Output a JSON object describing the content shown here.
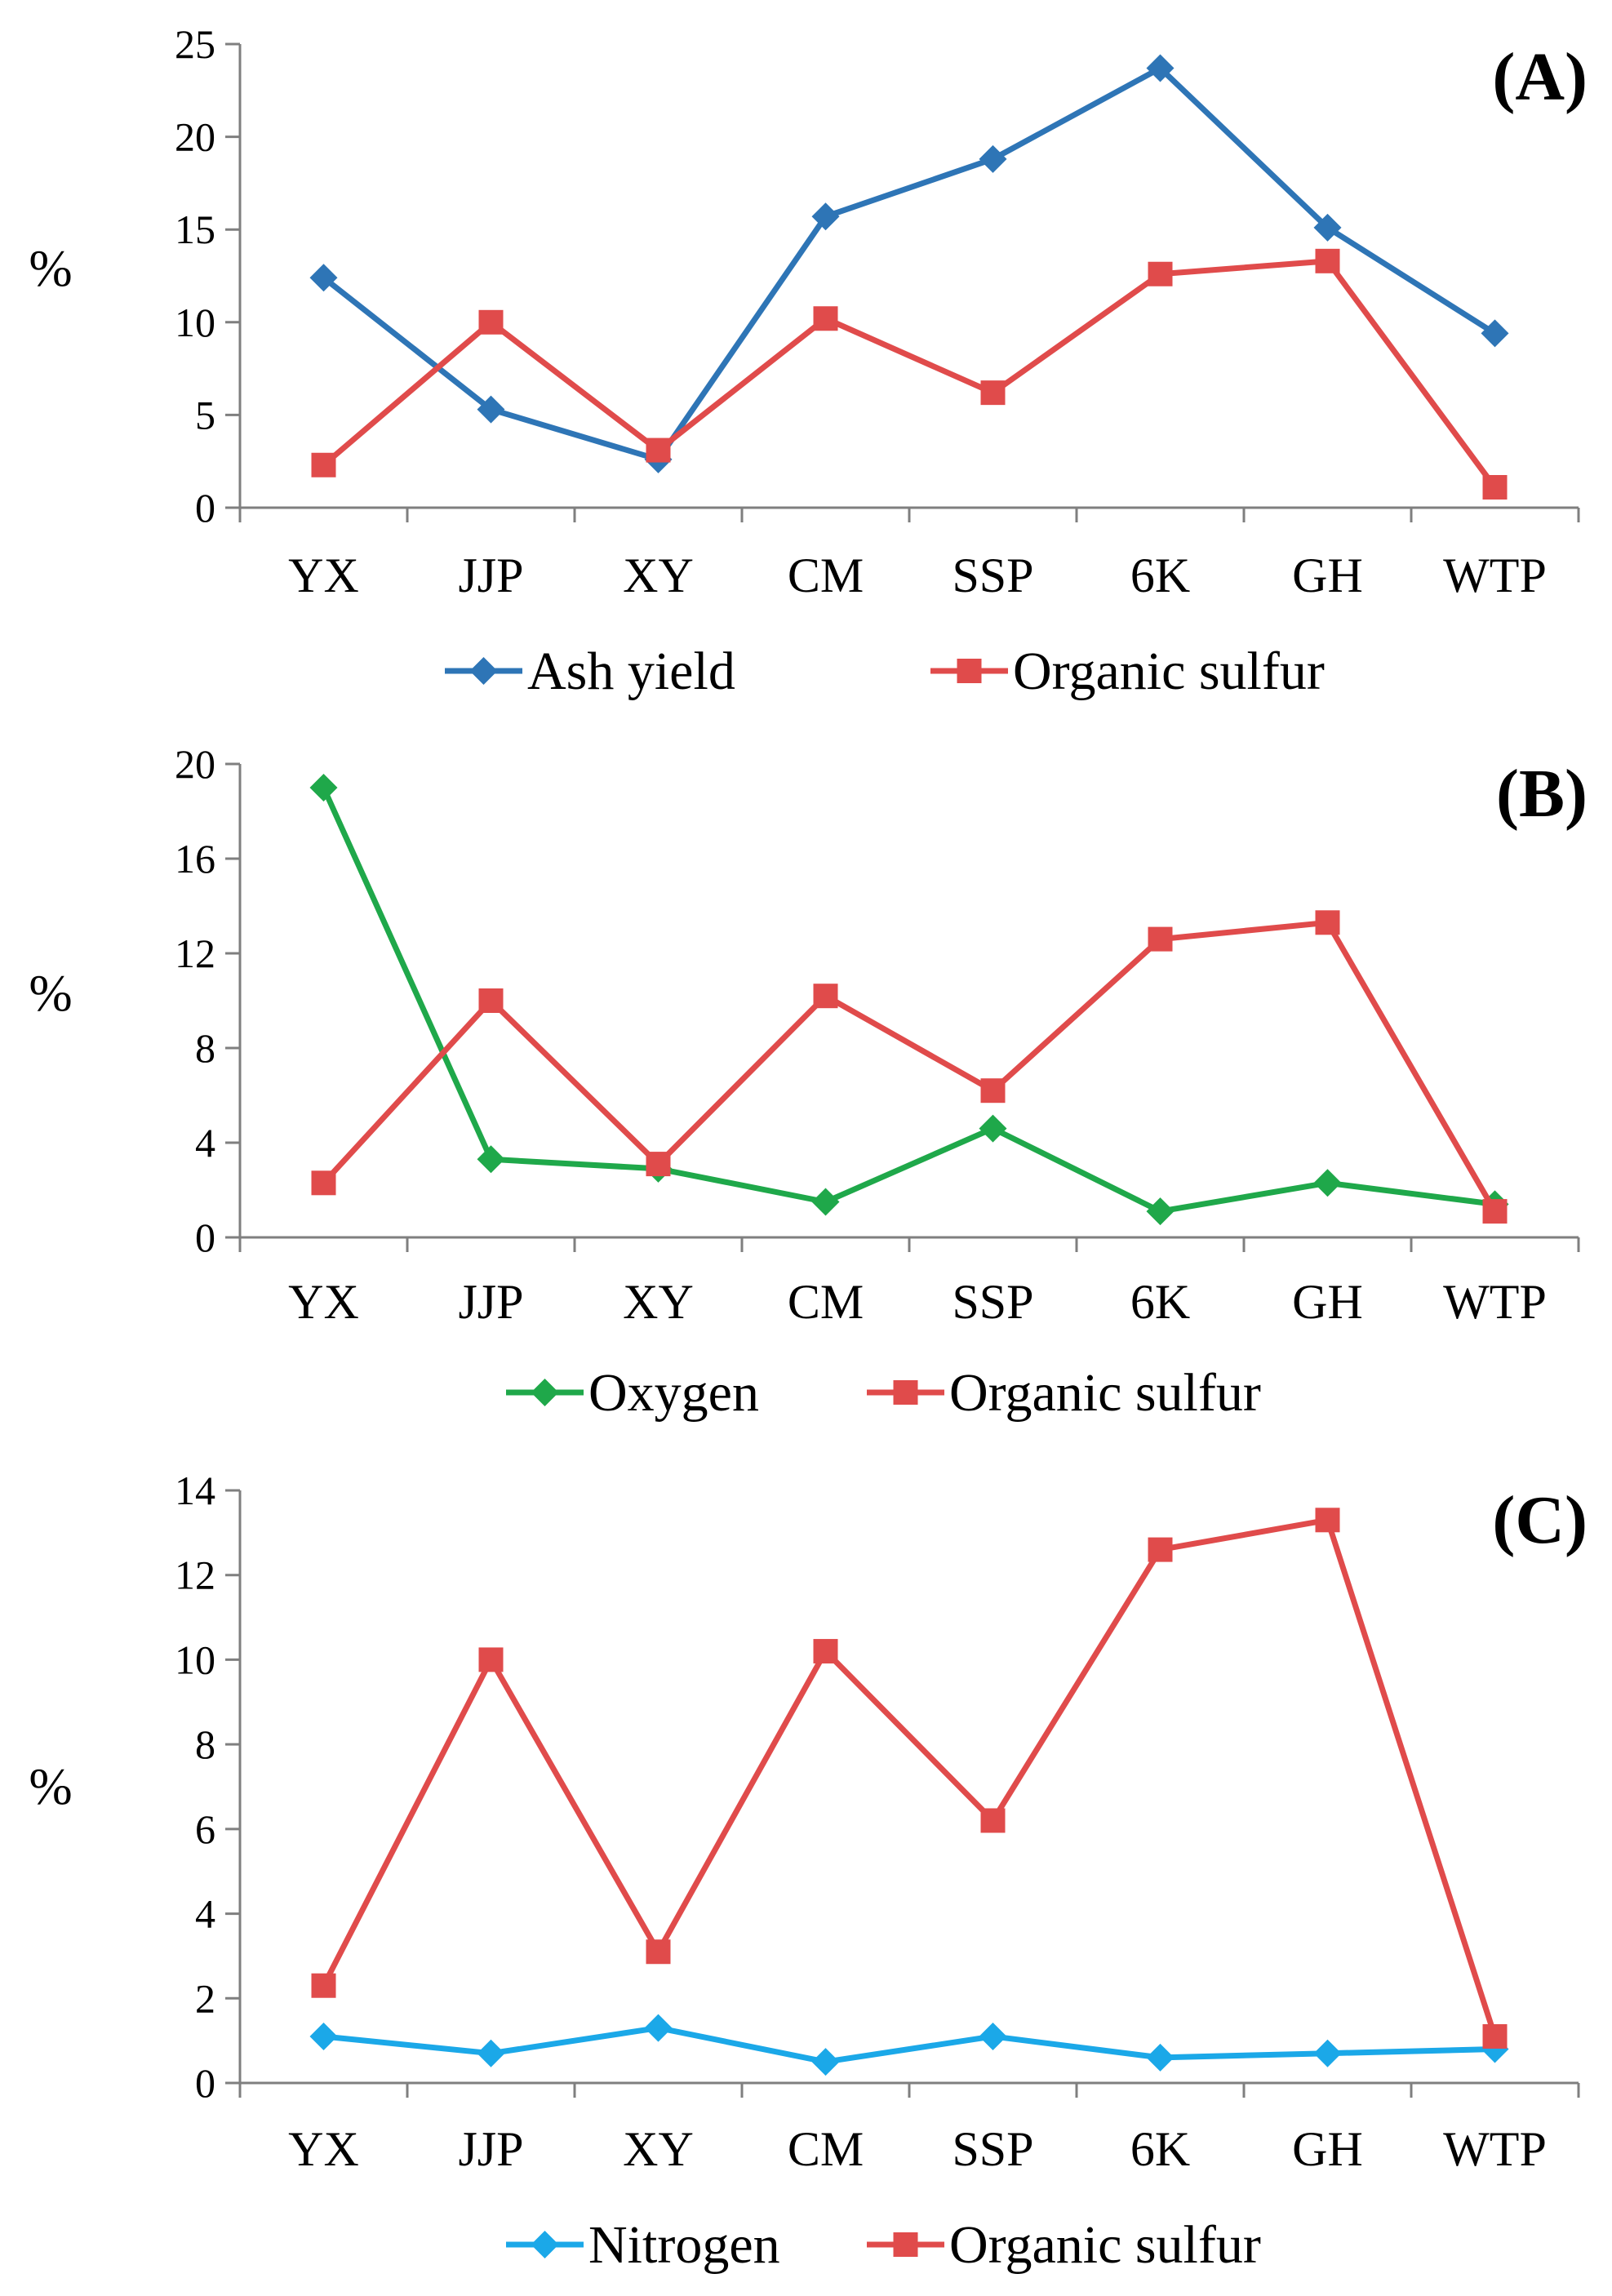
{
  "chart_data": [
    {
      "type": "line",
      "panel_label": "(A)",
      "ylabel": "%",
      "categories": [
        "YX",
        "JJP",
        "XY",
        "CM",
        "SSP",
        "6K",
        "GH",
        "WTP"
      ],
      "ylim": [
        0,
        25
      ],
      "yticks": [
        0,
        5,
        10,
        15,
        20,
        25
      ],
      "grid": false,
      "legend_position": "bottom",
      "series": [
        {
          "name": "Ash yield",
          "color": "#2E75B6",
          "marker": "diamond",
          "values": [
            12.4,
            5.3,
            2.6,
            15.7,
            18.8,
            23.7,
            15.1,
            9.4
          ]
        },
        {
          "name": "Organic sulfur",
          "color": "#E04B4B",
          "marker": "square",
          "values": [
            2.3,
            10.0,
            3.1,
            10.2,
            6.2,
            12.6,
            13.3,
            1.1
          ]
        }
      ]
    },
    {
      "type": "line",
      "panel_label": "(B)",
      "ylabel": "%",
      "categories": [
        "YX",
        "JJP",
        "XY",
        "CM",
        "SSP",
        "6K",
        "GH",
        "WTP"
      ],
      "ylim": [
        0,
        20
      ],
      "yticks": [
        0,
        4,
        8,
        12,
        16,
        20
      ],
      "grid": false,
      "legend_position": "bottom",
      "series": [
        {
          "name": "Oxygen",
          "color": "#1FA84A",
          "marker": "diamond",
          "values": [
            19.0,
            3.3,
            2.9,
            1.5,
            4.6,
            1.1,
            2.3,
            1.4
          ]
        },
        {
          "name": "Organic sulfur",
          "color": "#E04B4B",
          "marker": "square",
          "values": [
            2.3,
            10.0,
            3.1,
            10.2,
            6.2,
            12.6,
            13.3,
            1.1
          ]
        }
      ]
    },
    {
      "type": "line",
      "panel_label": "(C)",
      "ylabel": "%",
      "categories": [
        "YX",
        "JJP",
        "XY",
        "CM",
        "SSP",
        "6K",
        "GH",
        "WTP"
      ],
      "ylim": [
        0,
        14
      ],
      "yticks": [
        0,
        2,
        4,
        6,
        8,
        10,
        12,
        14
      ],
      "grid": false,
      "legend_position": "bottom",
      "series": [
        {
          "name": "Nitrogen",
          "color": "#1BA8E8",
          "marker": "diamond",
          "values": [
            1.1,
            0.7,
            1.3,
            0.5,
            1.1,
            0.6,
            0.7,
            0.8
          ]
        },
        {
          "name": "Organic sulfur",
          "color": "#E04B4B",
          "marker": "square",
          "values": [
            2.3,
            10.0,
            3.1,
            10.2,
            6.2,
            12.6,
            13.3,
            1.1
          ]
        }
      ]
    }
  ]
}
